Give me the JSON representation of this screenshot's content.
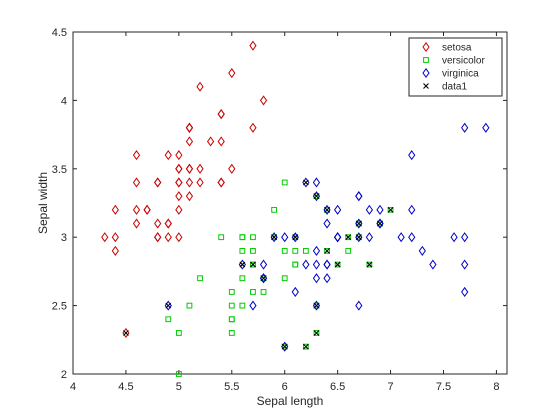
{
  "chart_data": {
    "type": "scatter",
    "title": "",
    "xlabel": "Sepal length",
    "ylabel": "Sepal width",
    "xlim": [
      4,
      8.1
    ],
    "ylim": [
      2,
      4.5
    ],
    "xticks": [
      "4",
      "4.5",
      "5",
      "5.5",
      "6",
      "6.5",
      "7",
      "7.5",
      "8"
    ],
    "yticks": [
      "2",
      "2.5",
      "3",
      "3.5",
      "4",
      "4.5"
    ],
    "grid": false,
    "legend_position": "top-right",
    "series": [
      {
        "name": "setosa",
        "marker": "diamond",
        "color": "#cc0000",
        "points": [
          [
            5.1,
            3.5
          ],
          [
            4.9,
            3.0
          ],
          [
            4.7,
            3.2
          ],
          [
            4.6,
            3.1
          ],
          [
            5.0,
            3.6
          ],
          [
            5.4,
            3.9
          ],
          [
            4.6,
            3.4
          ],
          [
            5.0,
            3.4
          ],
          [
            4.4,
            2.9
          ],
          [
            4.9,
            3.1
          ],
          [
            5.4,
            3.7
          ],
          [
            4.8,
            3.4
          ],
          [
            4.8,
            3.0
          ],
          [
            4.3,
            3.0
          ],
          [
            5.8,
            4.0
          ],
          [
            5.7,
            4.4
          ],
          [
            5.4,
            3.9
          ],
          [
            5.1,
            3.5
          ],
          [
            5.7,
            3.8
          ],
          [
            5.1,
            3.8
          ],
          [
            5.4,
            3.4
          ],
          [
            5.1,
            3.7
          ],
          [
            4.6,
            3.6
          ],
          [
            5.1,
            3.3
          ],
          [
            4.8,
            3.4
          ],
          [
            5.0,
            3.0
          ],
          [
            5.0,
            3.4
          ],
          [
            5.2,
            3.5
          ],
          [
            5.2,
            3.4
          ],
          [
            4.7,
            3.2
          ],
          [
            4.8,
            3.1
          ],
          [
            5.4,
            3.4
          ],
          [
            5.2,
            4.1
          ],
          [
            5.5,
            4.2
          ],
          [
            4.9,
            3.1
          ],
          [
            5.0,
            3.2
          ],
          [
            5.5,
            3.5
          ],
          [
            4.9,
            3.6
          ],
          [
            4.4,
            3.0
          ],
          [
            5.1,
            3.4
          ],
          [
            5.0,
            3.5
          ],
          [
            4.5,
            2.3
          ],
          [
            4.4,
            3.2
          ],
          [
            5.0,
            3.5
          ],
          [
            5.1,
            3.8
          ],
          [
            4.8,
            3.0
          ],
          [
            5.1,
            3.8
          ],
          [
            4.6,
            3.2
          ],
          [
            5.3,
            3.7
          ],
          [
            5.0,
            3.3
          ]
        ]
      },
      {
        "name": "versicolor",
        "marker": "square",
        "color": "#00cc00",
        "points": [
          [
            7.0,
            3.2
          ],
          [
            6.4,
            3.2
          ],
          [
            6.9,
            3.1
          ],
          [
            5.5,
            2.3
          ],
          [
            6.5,
            2.8
          ],
          [
            5.7,
            2.8
          ],
          [
            6.3,
            3.3
          ],
          [
            4.9,
            2.4
          ],
          [
            6.6,
            2.9
          ],
          [
            5.2,
            2.7
          ],
          [
            5.0,
            2.0
          ],
          [
            5.9,
            3.0
          ],
          [
            6.0,
            2.2
          ],
          [
            6.1,
            2.9
          ],
          [
            5.6,
            2.9
          ],
          [
            6.7,
            3.1
          ],
          [
            5.6,
            3.0
          ],
          [
            5.8,
            2.7
          ],
          [
            6.2,
            2.2
          ],
          [
            5.6,
            2.5
          ],
          [
            5.9,
            3.2
          ],
          [
            6.1,
            2.8
          ],
          [
            6.3,
            2.5
          ],
          [
            6.1,
            2.8
          ],
          [
            6.4,
            2.9
          ],
          [
            6.6,
            3.0
          ],
          [
            6.8,
            2.8
          ],
          [
            6.7,
            3.0
          ],
          [
            6.0,
            2.9
          ],
          [
            5.7,
            2.6
          ],
          [
            5.5,
            2.4
          ],
          [
            5.5,
            2.4
          ],
          [
            5.8,
            2.7
          ],
          [
            6.0,
            2.7
          ],
          [
            5.4,
            3.0
          ],
          [
            6.0,
            3.4
          ],
          [
            6.7,
            3.1
          ],
          [
            6.3,
            2.3
          ],
          [
            5.6,
            3.0
          ],
          [
            5.5,
            2.5
          ],
          [
            5.5,
            2.6
          ],
          [
            6.1,
            3.0
          ],
          [
            5.8,
            2.6
          ],
          [
            5.0,
            2.3
          ],
          [
            5.6,
            2.7
          ],
          [
            5.7,
            3.0
          ],
          [
            5.7,
            2.9
          ],
          [
            6.2,
            2.9
          ],
          [
            5.1,
            2.5
          ],
          [
            5.7,
            2.8
          ]
        ]
      },
      {
        "name": "virginica",
        "marker": "diamond",
        "color": "#0000cc",
        "points": [
          [
            6.3,
            3.3
          ],
          [
            5.8,
            2.7
          ],
          [
            7.1,
            3.0
          ],
          [
            6.3,
            2.9
          ],
          [
            6.5,
            3.0
          ],
          [
            7.6,
            3.0
          ],
          [
            4.9,
            2.5
          ],
          [
            7.3,
            2.9
          ],
          [
            6.7,
            2.5
          ],
          [
            7.2,
            3.6
          ],
          [
            6.5,
            3.2
          ],
          [
            6.4,
            2.7
          ],
          [
            6.8,
            3.0
          ],
          [
            5.7,
            2.5
          ],
          [
            5.8,
            2.8
          ],
          [
            6.4,
            3.2
          ],
          [
            6.5,
            3.0
          ],
          [
            7.7,
            3.8
          ],
          [
            7.7,
            2.6
          ],
          [
            6.0,
            2.2
          ],
          [
            6.9,
            3.2
          ],
          [
            5.6,
            2.8
          ],
          [
            7.7,
            2.8
          ],
          [
            6.3,
            2.7
          ],
          [
            6.7,
            3.3
          ],
          [
            7.2,
            3.2
          ],
          [
            6.2,
            2.8
          ],
          [
            6.1,
            3.0
          ],
          [
            6.4,
            2.8
          ],
          [
            7.2,
            3.0
          ],
          [
            7.4,
            2.8
          ],
          [
            7.9,
            3.8
          ],
          [
            6.4,
            2.8
          ],
          [
            6.3,
            2.8
          ],
          [
            6.1,
            2.6
          ],
          [
            7.7,
            3.0
          ],
          [
            6.3,
            3.4
          ],
          [
            6.4,
            3.1
          ],
          [
            6.0,
            3.0
          ],
          [
            6.9,
            3.1
          ],
          [
            6.7,
            3.1
          ],
          [
            6.9,
            3.1
          ],
          [
            5.8,
            2.7
          ],
          [
            6.8,
            3.2
          ],
          [
            6.7,
            3.3
          ],
          [
            6.7,
            3.0
          ],
          [
            6.3,
            2.5
          ],
          [
            6.5,
            3.0
          ],
          [
            6.2,
            3.4
          ],
          [
            5.9,
            3.0
          ]
        ]
      },
      {
        "name": "data1",
        "marker": "x",
        "color": "#000000",
        "points": [
          [
            4.5,
            2.3
          ],
          [
            4.9,
            2.5
          ],
          [
            5.6,
            2.8
          ],
          [
            5.7,
            2.8
          ],
          [
            5.8,
            2.7
          ],
          [
            5.9,
            3.0
          ],
          [
            6.0,
            2.2
          ],
          [
            6.1,
            3.0
          ],
          [
            6.2,
            2.2
          ],
          [
            6.2,
            3.4
          ],
          [
            6.3,
            2.3
          ],
          [
            6.3,
            2.5
          ],
          [
            6.3,
            3.3
          ],
          [
            6.4,
            2.9
          ],
          [
            6.4,
            3.2
          ],
          [
            6.5,
            2.8
          ],
          [
            6.6,
            3.0
          ],
          [
            6.7,
            3.0
          ],
          [
            6.7,
            3.1
          ],
          [
            6.8,
            2.8
          ],
          [
            6.9,
            3.1
          ],
          [
            7.0,
            3.2
          ]
        ]
      }
    ]
  }
}
